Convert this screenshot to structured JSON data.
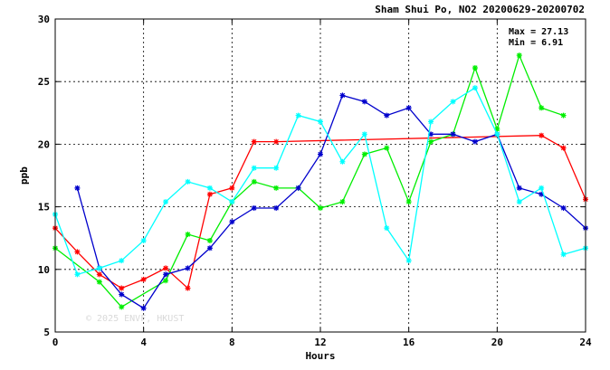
{
  "chart_data": {
    "type": "line",
    "title": "Sham Shui Po, NO2 20200629-20200702",
    "xlabel": "Hours",
    "ylabel": "ppb",
    "xlim": [
      0,
      24
    ],
    "ylim": [
      5,
      30
    ],
    "xticks": [
      0,
      4,
      8,
      12,
      16,
      20,
      24
    ],
    "yticks": [
      5,
      10,
      15,
      20,
      25,
      30
    ],
    "grid": true,
    "stats": {
      "max_label": "Max = 27.13",
      "min_label": "Min =  6.91"
    },
    "watermark": "© 2025  ENVF, HKUST",
    "series": [
      {
        "color": "#ff0000",
        "x": [
          0,
          1,
          2,
          3,
          4,
          5,
          6,
          7,
          8,
          9,
          10,
          22,
          23,
          24
        ],
        "y": [
          13.3,
          11.4,
          9.6,
          8.5,
          9.2,
          10.1,
          8.5,
          16.0,
          16.5,
          20.2,
          20.2,
          20.7,
          19.7,
          15.6
        ]
      },
      {
        "color": "#00ee00",
        "x": [
          0,
          2,
          3,
          5,
          6,
          7,
          8,
          9,
          10,
          11,
          12,
          13,
          14,
          15,
          16,
          17,
          18,
          19,
          20,
          21,
          22,
          23
        ],
        "y": [
          11.7,
          9.0,
          7.0,
          9.1,
          12.8,
          12.3,
          15.4,
          17.0,
          16.5,
          16.5,
          14.9,
          15.4,
          19.2,
          19.7,
          15.4,
          20.2,
          20.8,
          26.1,
          21.2,
          27.1,
          22.9,
          22.3
        ]
      },
      {
        "color": "#0000cc",
        "x": [
          1,
          2,
          3,
          4,
          5,
          6,
          7,
          8,
          9,
          10,
          11,
          12,
          13,
          14,
          15,
          16,
          17,
          18,
          19,
          20,
          21,
          22,
          23,
          24
        ],
        "y": [
          16.5,
          10.1,
          8.0,
          6.9,
          9.6,
          10.1,
          11.7,
          13.8,
          14.9,
          14.9,
          16.5,
          19.2,
          23.9,
          23.4,
          22.3,
          22.9,
          20.8,
          20.8,
          20.2,
          20.8,
          16.5,
          16.0,
          14.9,
          13.3
        ]
      },
      {
        "color": "#00ffff",
        "x": [
          0,
          1,
          2,
          3,
          4,
          5,
          6,
          7,
          8,
          9,
          10,
          11,
          12,
          13,
          14,
          15,
          16,
          17,
          18,
          19,
          20,
          21,
          22,
          23,
          24
        ],
        "y": [
          14.4,
          9.6,
          10.1,
          10.7,
          12.3,
          15.4,
          17.0,
          16.5,
          15.4,
          18.1,
          18.1,
          22.3,
          21.8,
          18.6,
          20.8,
          13.3,
          10.7,
          21.8,
          23.4,
          24.5,
          20.8,
          15.4,
          16.5,
          11.2,
          11.7
        ]
      }
    ]
  }
}
